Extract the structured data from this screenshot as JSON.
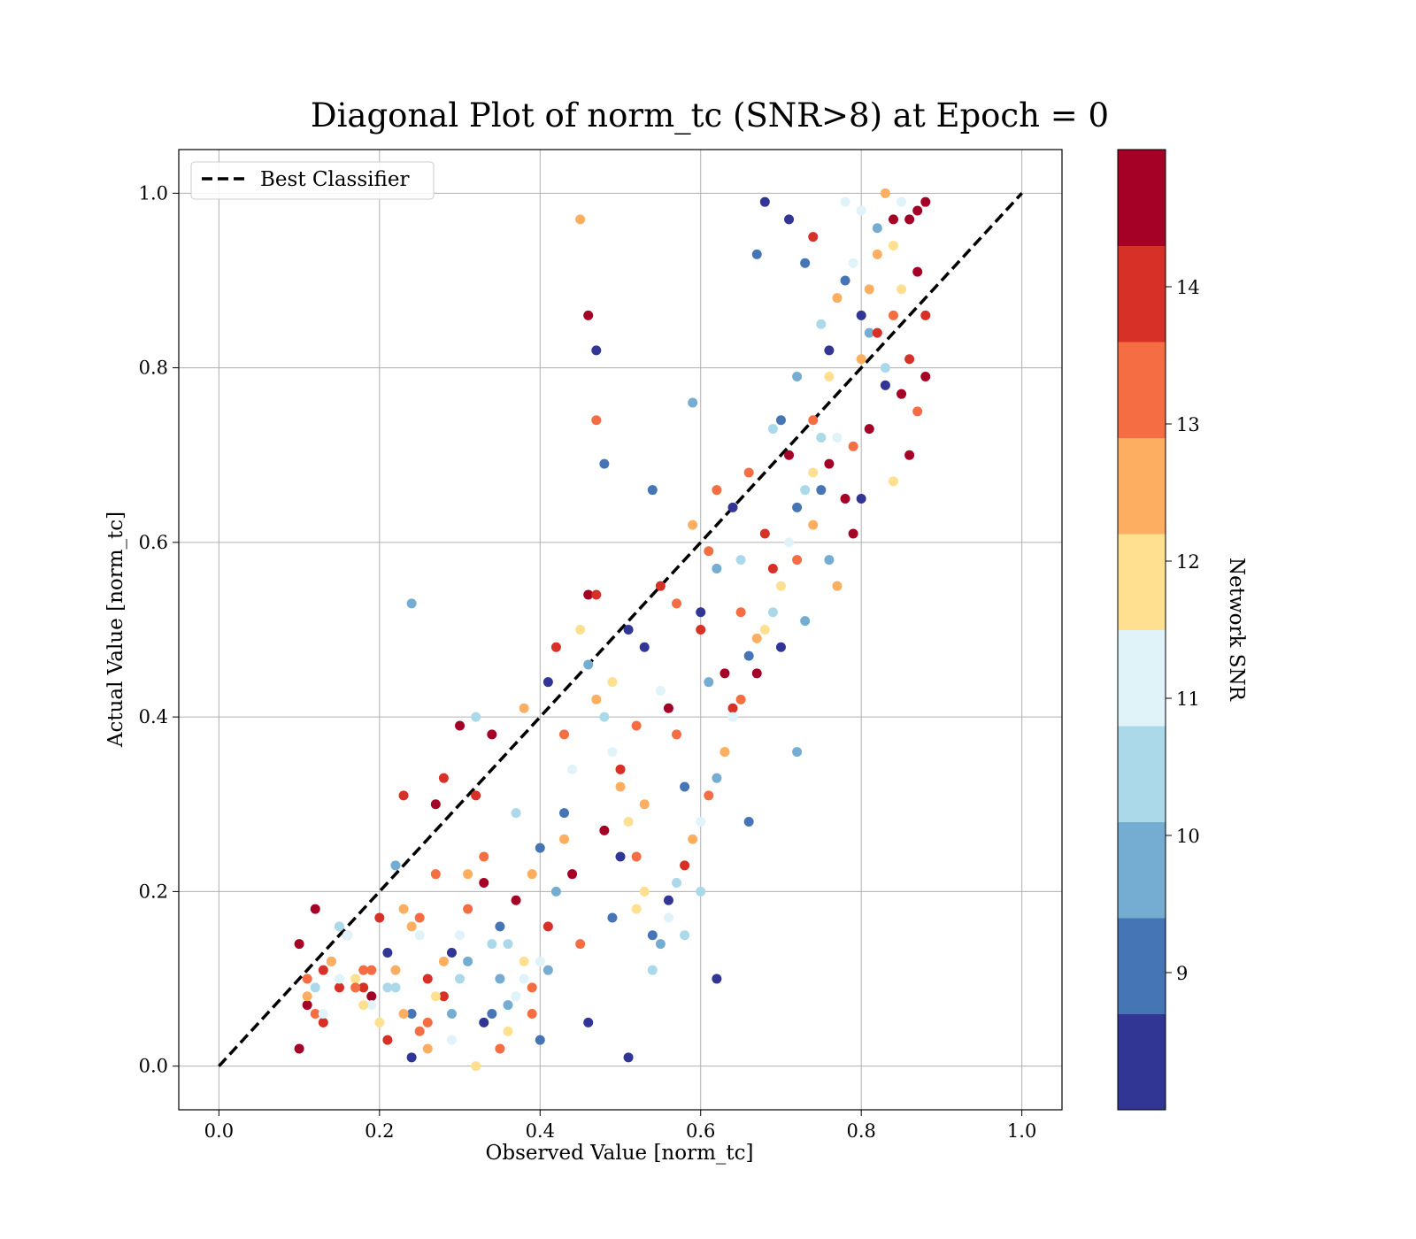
{
  "chart_data": {
    "type": "scatter",
    "title": "Diagonal Plot of norm_tc (SNR>8) at Epoch = 0",
    "xlabel": "Observed Value [norm_tc]",
    "ylabel": "Actual Value [norm_tc]",
    "xlim": [
      -0.05,
      1.05
    ],
    "ylim": [
      -0.05,
      1.05
    ],
    "xticks": [
      "0.0",
      "0.2",
      "0.4",
      "0.6",
      "0.8",
      "1.0"
    ],
    "yticks": [
      "0.0",
      "0.2",
      "0.4",
      "0.6",
      "0.8",
      "1.0"
    ],
    "grid": true,
    "legend": {
      "placement": "upper-left",
      "entries": [
        "Best Classifier"
      ]
    },
    "reference_line": {
      "name": "Best Classifier",
      "style": "dashed",
      "x": [
        0,
        1
      ],
      "y": [
        0,
        1
      ],
      "color": "#000000"
    },
    "colorbar": {
      "label": "Network SNR",
      "range": [
        8,
        15
      ],
      "bins": 10,
      "ticks": [
        "9",
        "10",
        "11",
        "12",
        "13",
        "14"
      ],
      "colors": [
        "#313695",
        "#4575b4",
        "#74add1",
        "#abd9e9",
        "#e0f3f8",
        "#fee090",
        "#fdae61",
        "#f46d43",
        "#d73027",
        "#a50026"
      ]
    },
    "points": [
      [
        0.1,
        0.14,
        14.5
      ],
      [
        0.11,
        0.1,
        13.2
      ],
      [
        0.12,
        0.18,
        14.6
      ],
      [
        0.13,
        0.11,
        13.8
      ],
      [
        0.14,
        0.12,
        9.8
      ],
      [
        0.15,
        0.09,
        14.2
      ],
      [
        0.16,
        0.15,
        13.1
      ],
      [
        0.17,
        0.1,
        11.5
      ],
      [
        0.18,
        0.11,
        13.5
      ],
      [
        0.19,
        0.08,
        14.8
      ],
      [
        0.2,
        0.17,
        13.9
      ],
      [
        0.21,
        0.13,
        8.4
      ],
      [
        0.22,
        0.09,
        10.2
      ],
      [
        0.23,
        0.18,
        12.4
      ],
      [
        0.24,
        0.06,
        9.1
      ],
      [
        0.25,
        0.17,
        13.3
      ],
      [
        0.26,
        0.1,
        14.1
      ],
      [
        0.27,
        0.22,
        13.0
      ],
      [
        0.28,
        0.33,
        14.2
      ],
      [
        0.29,
        0.13,
        8.6
      ],
      [
        0.3,
        0.39,
        14.6
      ],
      [
        0.31,
        0.22,
        12.6
      ],
      [
        0.32,
        0.31,
        13.8
      ],
      [
        0.33,
        0.21,
        14.4
      ],
      [
        0.34,
        0.38,
        14.7
      ],
      [
        0.35,
        0.16,
        9.3
      ],
      [
        0.36,
        0.14,
        10.4
      ],
      [
        0.37,
        0.19,
        14.8
      ],
      [
        0.38,
        0.41,
        12.3
      ],
      [
        0.39,
        0.09,
        13.2
      ],
      [
        0.1,
        0.02,
        14.3
      ],
      [
        0.11,
        0.07,
        14.9
      ],
      [
        0.12,
        0.06,
        13.6
      ],
      [
        0.13,
        0.05,
        14.1
      ],
      [
        0.15,
        0.16,
        10.7
      ],
      [
        0.18,
        0.09,
        13.9
      ],
      [
        0.19,
        0.07,
        11.2
      ],
      [
        0.21,
        0.03,
        14.0
      ],
      [
        0.22,
        0.11,
        12.5
      ],
      [
        0.23,
        0.31,
        14.1
      ],
      [
        0.24,
        0.01,
        8.5
      ],
      [
        0.24,
        0.53,
        9.6
      ],
      [
        0.25,
        0.04,
        13.4
      ],
      [
        0.26,
        0.02,
        12.7
      ],
      [
        0.27,
        0.3,
        14.7
      ],
      [
        0.28,
        0.08,
        14.2
      ],
      [
        0.29,
        0.06,
        9.8
      ],
      [
        0.3,
        0.15,
        11.3
      ],
      [
        0.31,
        0.18,
        13.5
      ],
      [
        0.32,
        0.0,
        12.2
      ],
      [
        0.33,
        0.05,
        8.7
      ],
      [
        0.34,
        0.14,
        10.3
      ],
      [
        0.35,
        0.02,
        13.1
      ],
      [
        0.36,
        0.07,
        9.4
      ],
      [
        0.37,
        0.29,
        10.5
      ],
      [
        0.38,
        0.12,
        11.8
      ],
      [
        0.39,
        0.06,
        12.9
      ],
      [
        0.4,
        0.03,
        8.9
      ],
      [
        0.4,
        0.25,
        9.2
      ],
      [
        0.41,
        0.11,
        10.1
      ],
      [
        0.41,
        0.44,
        8.5
      ],
      [
        0.42,
        0.48,
        14.0
      ],
      [
        0.43,
        0.38,
        13.6
      ],
      [
        0.43,
        0.29,
        8.8
      ],
      [
        0.44,
        0.22,
        14.5
      ],
      [
        0.45,
        0.14,
        13.2
      ],
      [
        0.45,
        0.97,
        12.4
      ],
      [
        0.46,
        0.05,
        8.6
      ],
      [
        0.46,
        0.54,
        14.8
      ],
      [
        0.46,
        0.86,
        14.3
      ],
      [
        0.47,
        0.82,
        8.3
      ],
      [
        0.47,
        0.54,
        13.9
      ],
      [
        0.47,
        0.74,
        13.4
      ],
      [
        0.48,
        0.69,
        9.1
      ],
      [
        0.48,
        0.27,
        14.6
      ],
      [
        0.49,
        0.17,
        9.3
      ],
      [
        0.49,
        0.44,
        11.9
      ],
      [
        0.5,
        0.24,
        8.4
      ],
      [
        0.5,
        0.34,
        14.1
      ],
      [
        0.51,
        0.01,
        8.6
      ],
      [
        0.51,
        0.5,
        8.2
      ],
      [
        0.52,
        0.18,
        11.7
      ],
      [
        0.52,
        0.39,
        13.3
      ],
      [
        0.53,
        0.3,
        12.6
      ],
      [
        0.53,
        0.48,
        8.4
      ],
      [
        0.54,
        0.66,
        8.9
      ],
      [
        0.54,
        0.15,
        9.3
      ],
      [
        0.55,
        0.43,
        10.8
      ],
      [
        0.55,
        0.55,
        13.7
      ],
      [
        0.56,
        0.41,
        14.5
      ],
      [
        0.56,
        0.19,
        8.7
      ],
      [
        0.57,
        0.38,
        12.9
      ],
      [
        0.57,
        0.53,
        13.4
      ],
      [
        0.58,
        0.32,
        9.0
      ],
      [
        0.58,
        0.15,
        10.3
      ],
      [
        0.59,
        0.76,
        9.4
      ],
      [
        0.59,
        0.62,
        12.4
      ],
      [
        0.6,
        0.2,
        10.5
      ],
      [
        0.6,
        0.5,
        14.1
      ],
      [
        0.61,
        0.44,
        9.7
      ],
      [
        0.61,
        0.59,
        13.2
      ],
      [
        0.62,
        0.1,
        8.4
      ],
      [
        0.62,
        0.66,
        13.6
      ],
      [
        0.63,
        0.36,
        12.2
      ],
      [
        0.63,
        0.45,
        14.7
      ],
      [
        0.64,
        0.64,
        8.3
      ],
      [
        0.64,
        0.41,
        13.8
      ],
      [
        0.65,
        0.52,
        13.1
      ],
      [
        0.65,
        0.58,
        10.6
      ],
      [
        0.66,
        0.28,
        9.2
      ],
      [
        0.66,
        0.68,
        13.4
      ],
      [
        0.67,
        0.93,
        9.3
      ],
      [
        0.67,
        0.45,
        14.5
      ],
      [
        0.68,
        0.99,
        8.5
      ],
      [
        0.68,
        0.61,
        13.9
      ],
      [
        0.69,
        0.73,
        10.2
      ],
      [
        0.69,
        0.57,
        14.1
      ],
      [
        0.7,
        0.74,
        9.0
      ],
      [
        0.7,
        0.48,
        8.7
      ],
      [
        0.71,
        0.7,
        14.6
      ],
      [
        0.71,
        0.97,
        8.6
      ],
      [
        0.72,
        0.36,
        9.4
      ],
      [
        0.72,
        0.58,
        13.6
      ],
      [
        0.72,
        0.79,
        9.9
      ],
      [
        0.73,
        0.92,
        9.1
      ],
      [
        0.73,
        0.51,
        9.4
      ],
      [
        0.74,
        0.62,
        12.8
      ],
      [
        0.74,
        0.74,
        13.3
      ],
      [
        0.74,
        0.95,
        14.0
      ],
      [
        0.75,
        0.85,
        10.4
      ],
      [
        0.75,
        0.66,
        8.9
      ],
      [
        0.76,
        0.69,
        14.8
      ],
      [
        0.76,
        0.58,
        9.6
      ],
      [
        0.76,
        0.82,
        8.3
      ],
      [
        0.77,
        0.72,
        11.4
      ],
      [
        0.77,
        0.55,
        12.3
      ],
      [
        0.78,
        0.9,
        8.8
      ],
      [
        0.78,
        0.65,
        14.3
      ],
      [
        0.78,
        0.99,
        11.1
      ],
      [
        0.79,
        0.71,
        13.5
      ],
      [
        0.79,
        0.61,
        14.9
      ],
      [
        0.8,
        0.81,
        12.7
      ],
      [
        0.8,
        0.86,
        8.2
      ],
      [
        0.8,
        0.65,
        8.5
      ],
      [
        0.81,
        0.84,
        9.7
      ],
      [
        0.81,
        0.73,
        14.6
      ],
      [
        0.82,
        0.93,
        12.6
      ],
      [
        0.82,
        0.84,
        14.2
      ],
      [
        0.83,
        1.0,
        12.5
      ],
      [
        0.83,
        0.78,
        8.4
      ],
      [
        0.84,
        0.97,
        14.8
      ],
      [
        0.84,
        0.86,
        13.3
      ],
      [
        0.84,
        0.67,
        12.2
      ],
      [
        0.85,
        0.99,
        10.9
      ],
      [
        0.85,
        0.89,
        11.6
      ],
      [
        0.85,
        0.77,
        14.7
      ],
      [
        0.86,
        0.97,
        14.9
      ],
      [
        0.86,
        0.81,
        14.1
      ],
      [
        0.86,
        0.7,
        14.5
      ],
      [
        0.87,
        0.91,
        14.8
      ],
      [
        0.87,
        0.75,
        13.6
      ],
      [
        0.87,
        0.98,
        14.4
      ],
      [
        0.88,
        0.86,
        14.1
      ],
      [
        0.88,
        0.99,
        14.9
      ],
      [
        0.88,
        0.79,
        14.6
      ],
      [
        0.84,
        0.94,
        12.0
      ],
      [
        0.83,
        0.8,
        10.7
      ],
      [
        0.82,
        0.96,
        10.1
      ],
      [
        0.81,
        0.89,
        12.5
      ],
      [
        0.8,
        0.98,
        10.8
      ],
      [
        0.79,
        0.92,
        11.3
      ],
      [
        0.77,
        0.88,
        12.4
      ],
      [
        0.76,
        0.79,
        11.7
      ],
      [
        0.75,
        0.72,
        10.3
      ],
      [
        0.74,
        0.68,
        11.9
      ],
      [
        0.73,
        0.66,
        10.6
      ],
      [
        0.72,
        0.64,
        9.3
      ],
      [
        0.71,
        0.6,
        11.1
      ],
      [
        0.7,
        0.55,
        12.2
      ],
      [
        0.69,
        0.52,
        10.4
      ],
      [
        0.68,
        0.5,
        11.6
      ],
      [
        0.67,
        0.49,
        12.7
      ],
      [
        0.66,
        0.47,
        8.8
      ],
      [
        0.65,
        0.42,
        13.3
      ],
      [
        0.64,
        0.4,
        11.2
      ],
      [
        0.63,
        0.36,
        12.5
      ],
      [
        0.62,
        0.33,
        10.0
      ],
      [
        0.61,
        0.31,
        12.9
      ],
      [
        0.6,
        0.28,
        11.4
      ],
      [
        0.59,
        0.26,
        12.3
      ],
      [
        0.58,
        0.23,
        13.8
      ],
      [
        0.57,
        0.21,
        10.2
      ],
      [
        0.56,
        0.17,
        10.9
      ],
      [
        0.55,
        0.14,
        9.6
      ],
      [
        0.54,
        0.11,
        10.4
      ],
      [
        0.53,
        0.2,
        12.1
      ],
      [
        0.52,
        0.24,
        13.2
      ],
      [
        0.51,
        0.28,
        11.7
      ],
      [
        0.5,
        0.32,
        12.8
      ],
      [
        0.49,
        0.36,
        11.0
      ],
      [
        0.48,
        0.4,
        10.6
      ],
      [
        0.47,
        0.42,
        12.5
      ],
      [
        0.46,
        0.46,
        9.4
      ],
      [
        0.45,
        0.5,
        12.2
      ],
      [
        0.44,
        0.34,
        11.3
      ],
      [
        0.43,
        0.26,
        12.6
      ],
      [
        0.42,
        0.2,
        9.7
      ],
      [
        0.41,
        0.16,
        13.7
      ],
      [
        0.4,
        0.12,
        11.4
      ],
      [
        0.39,
        0.22,
        12.3
      ],
      [
        0.38,
        0.1,
        10.8
      ],
      [
        0.37,
        0.08,
        11.2
      ],
      [
        0.36,
        0.04,
        12.0
      ],
      [
        0.35,
        0.1,
        9.5
      ],
      [
        0.34,
        0.06,
        8.8
      ],
      [
        0.33,
        0.24,
        13.4
      ],
      [
        0.32,
        0.4,
        10.4
      ],
      [
        0.31,
        0.12,
        9.9
      ],
      [
        0.3,
        0.1,
        10.7
      ],
      [
        0.29,
        0.03,
        11.3
      ],
      [
        0.28,
        0.12,
        12.6
      ],
      [
        0.27,
        0.08,
        12.2
      ],
      [
        0.26,
        0.05,
        13.0
      ],
      [
        0.25,
        0.15,
        11.0
      ],
      [
        0.24,
        0.16,
        12.4
      ],
      [
        0.23,
        0.06,
        12.8
      ],
      [
        0.22,
        0.23,
        9.6
      ],
      [
        0.21,
        0.09,
        10.4
      ],
      [
        0.2,
        0.05,
        11.7
      ],
      [
        0.19,
        0.11,
        13.3
      ],
      [
        0.18,
        0.07,
        12.1
      ],
      [
        0.17,
        0.09,
        12.9
      ],
      [
        0.16,
        0.15,
        11.4
      ],
      [
        0.15,
        0.1,
        10.9
      ],
      [
        0.14,
        0.12,
        12.3
      ],
      [
        0.13,
        0.06,
        11.0
      ],
      [
        0.12,
        0.09,
        10.5
      ],
      [
        0.11,
        0.08,
        12.6
      ],
      [
        0.6,
        0.52,
        8.6
      ],
      [
        0.62,
        0.57,
        9.7
      ]
    ]
  }
}
